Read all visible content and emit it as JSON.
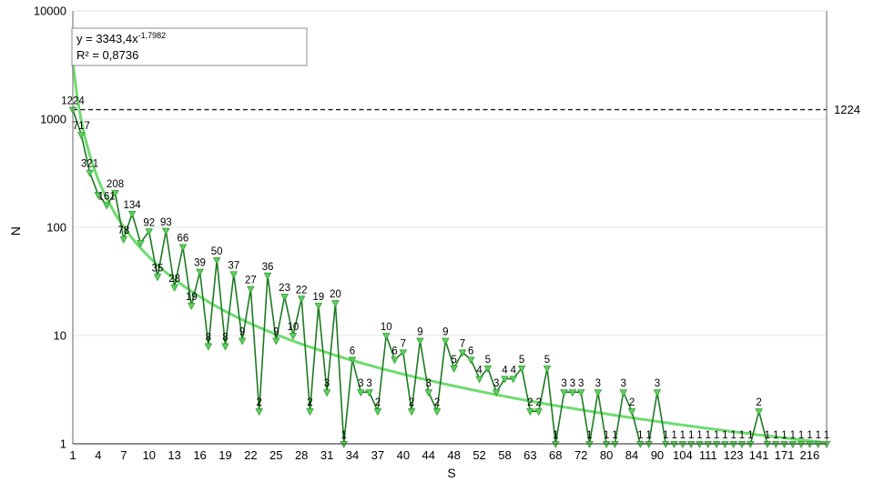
{
  "axes": {
    "y_title": "N",
    "x_title": "S",
    "y_ticks": [
      "10000",
      "1000",
      "100",
      "10",
      "1"
    ],
    "x_tick_labels": [
      "1",
      "4",
      "7",
      "10",
      "13",
      "16",
      "19",
      "22",
      "25",
      "28",
      "31",
      "34",
      "37",
      "40",
      "44",
      "48",
      "52",
      "58",
      "63",
      "68",
      "72",
      "80",
      "84",
      "90",
      "104",
      "111",
      "123",
      "141",
      "171",
      "216"
    ],
    "x_tick_every_n_points": 3
  },
  "equation": {
    "base": "y = 3343,4x",
    "exponent": "-1,7982",
    "r_squared": "R² = 0,8736"
  },
  "reference_line": {
    "value": 1224,
    "label_right": "1224"
  },
  "chart_data": {
    "type": "line",
    "x_axis_type": "category",
    "y_scale": "log",
    "ylim": [
      1,
      10000
    ],
    "xlabel": "S",
    "ylabel": "N",
    "grid": "horizontal-decades",
    "legend": "none",
    "values": [
      1224,
      717,
      321,
      200,
      161,
      208,
      78,
      134,
      72,
      92,
      35,
      93,
      28,
      66,
      19,
      39,
      8,
      50,
      8,
      37,
      9,
      27,
      2,
      36,
      9,
      23,
      10,
      22,
      2,
      19,
      3,
      20,
      1,
      6,
      3,
      3,
      2,
      10,
      6,
      7,
      2,
      9,
      3,
      2,
      9,
      5,
      7,
      6,
      4,
      5,
      3,
      4,
      4,
      5,
      2,
      2,
      5,
      1,
      3,
      3,
      3,
      1,
      3,
      1,
      1,
      3,
      2,
      1,
      1,
      3,
      1,
      1,
      1,
      1,
      1,
      1,
      1,
      1,
      1,
      1,
      1,
      2,
      1,
      1,
      1,
      1,
      1,
      1,
      1,
      1
    ],
    "point_labels": [
      "1224",
      "717",
      "321",
      "",
      "161",
      "208",
      "78",
      "134",
      "",
      "92",
      "35",
      "93",
      "28",
      "66",
      "19",
      "39",
      "8",
      "50",
      "8",
      "37",
      "9",
      "27",
      "2",
      "36",
      "9",
      "23",
      "10",
      "22",
      "2",
      "19",
      "3",
      "20",
      "1",
      "6",
      "3",
      "3",
      "2",
      "10",
      "6",
      "7",
      "2",
      "9",
      "3",
      "2",
      "9",
      "5",
      "7",
      "6",
      "4",
      "5",
      "3",
      "4",
      "4",
      "5",
      "2",
      "2",
      "5",
      "1",
      "3",
      "3",
      "3",
      "1",
      "3",
      "1",
      "1",
      "3",
      "2",
      "1",
      "1",
      "3",
      "1",
      "1",
      "1",
      "1",
      "1",
      "1",
      "1",
      "1",
      "1",
      "1",
      "1",
      "2",
      "1",
      "1",
      "1",
      "1",
      "1",
      "1",
      "1",
      "1"
    ],
    "x_tick_labels": [
      "1",
      "4",
      "7",
      "10",
      "13",
      "16",
      "19",
      "22",
      "25",
      "28",
      "31",
      "34",
      "37",
      "40",
      "44",
      "48",
      "52",
      "58",
      "63",
      "68",
      "72",
      "80",
      "84",
      "90",
      "104",
      "111",
      "123",
      "141",
      "171",
      "216"
    ],
    "trendline": {
      "type": "power",
      "a": 3343.4,
      "b": -1.7982,
      "equation_text": "y = 3343,4x^-1,7982",
      "r2_text": "R² = 0,8736"
    },
    "reference_line": {
      "y": 1224,
      "label": "1224"
    },
    "title": ""
  },
  "colors": {
    "series_line": "#1d7a22",
    "trend_line": "#6fdb6f",
    "marker_fill": "#5ed05e",
    "marker_stroke": "#2f9e2f",
    "grid": "#e3e3e3",
    "spine": "#7f7f7f",
    "axis_bottom": "#4d4d4d",
    "reference_dash": "#1a1a1a",
    "text": "#000000"
  }
}
